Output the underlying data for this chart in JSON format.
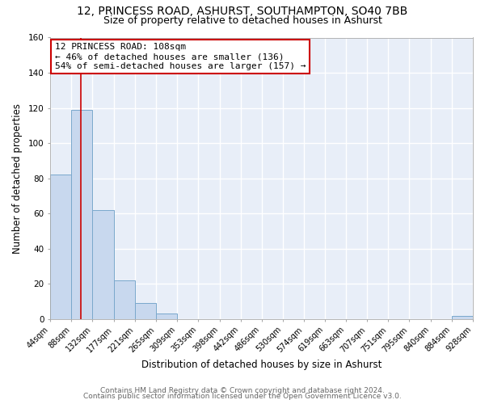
{
  "title1": "12, PRINCESS ROAD, ASHURST, SOUTHAMPTON, SO40 7BB",
  "title2": "Size of property relative to detached houses in Ashurst",
  "xlabel": "Distribution of detached houses by size in Ashurst",
  "ylabel": "Number of detached properties",
  "bin_edges": [
    44,
    88,
    132,
    177,
    221,
    265,
    309,
    353,
    398,
    442,
    486,
    530,
    574,
    619,
    663,
    707,
    751,
    795,
    840,
    884,
    928
  ],
  "bar_heights": [
    82,
    119,
    62,
    22,
    9,
    3,
    0,
    0,
    0,
    0,
    0,
    0,
    0,
    0,
    0,
    0,
    0,
    0,
    0,
    2
  ],
  "bar_color": "#c8d8ee",
  "bar_edge_color": "#7aa8cc",
  "property_size": 108,
  "vline_color": "#cc0000",
  "annotation_line1": "12 PRINCESS ROAD: 108sqm",
  "annotation_line2": "← 46% of detached houses are smaller (136)",
  "annotation_line3": "54% of semi-detached houses are larger (157) →",
  "annotation_box_edge_color": "#cc0000",
  "ylim": [
    0,
    160
  ],
  "yticks": [
    0,
    20,
    40,
    60,
    80,
    100,
    120,
    140,
    160
  ],
  "footer1": "Contains HM Land Registry data © Crown copyright and database right 2024.",
  "footer2": "Contains public sector information licensed under the Open Government Licence v3.0.",
  "fig_background_color": "#ffffff",
  "plot_background_color": "#e8eef8",
  "grid_color": "#ffffff",
  "title1_fontsize": 10,
  "title2_fontsize": 9,
  "tick_label_fontsize": 7,
  "axis_label_fontsize": 8.5,
  "annotation_fontsize": 8,
  "footer_fontsize": 6.5
}
